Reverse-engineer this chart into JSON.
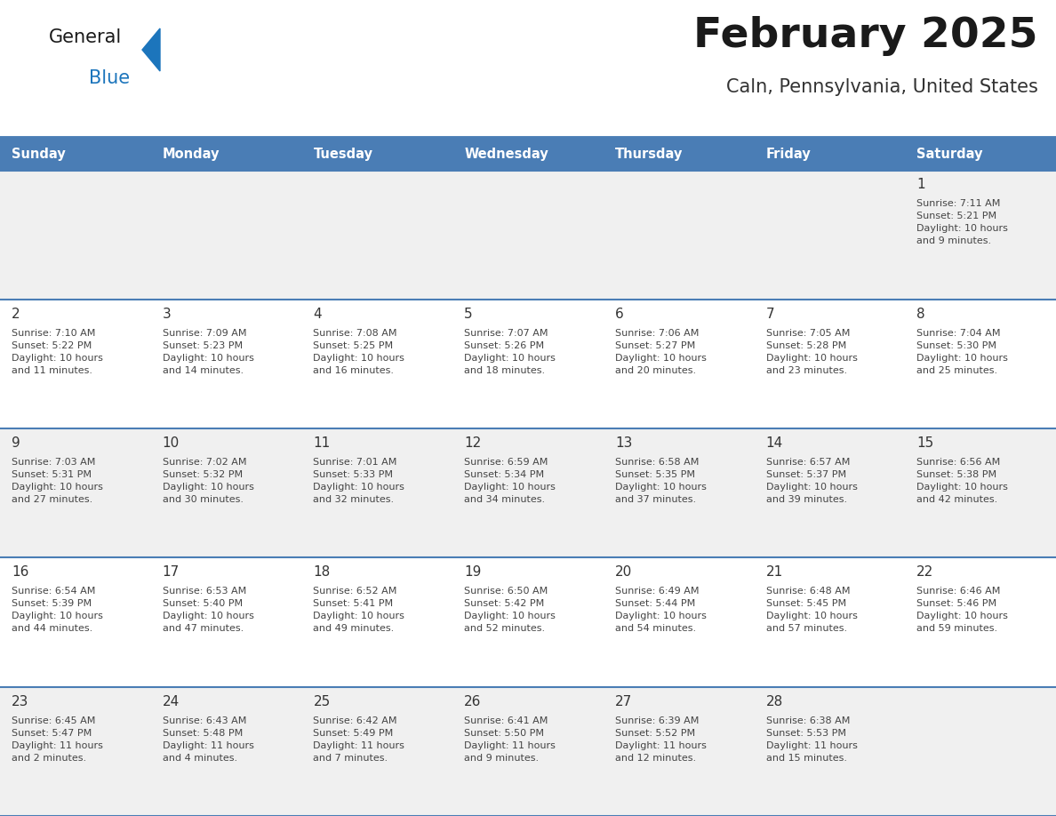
{
  "title": "February 2025",
  "subtitle": "Caln, Pennsylvania, United States",
  "header_bg": "#4A7DB5",
  "header_text_color": "#FFFFFF",
  "row_bg_light": "#F0F0F0",
  "row_bg_white": "#FFFFFF",
  "border_color": "#4A7DB5",
  "day_headers": [
    "Sunday",
    "Monday",
    "Tuesday",
    "Wednesday",
    "Thursday",
    "Friday",
    "Saturday"
  ],
  "title_color": "#1a1a1a",
  "subtitle_color": "#333333",
  "day_number_color": "#333333",
  "cell_text_color": "#444444",
  "logo_blue": "#1C75BC",
  "logo_dark": "#1a1a1a",
  "weeks": [
    [
      {
        "day": null,
        "info": null
      },
      {
        "day": null,
        "info": null
      },
      {
        "day": null,
        "info": null
      },
      {
        "day": null,
        "info": null
      },
      {
        "day": null,
        "info": null
      },
      {
        "day": null,
        "info": null
      },
      {
        "day": 1,
        "info": "Sunrise: 7:11 AM\nSunset: 5:21 PM\nDaylight: 10 hours\nand 9 minutes."
      }
    ],
    [
      {
        "day": 2,
        "info": "Sunrise: 7:10 AM\nSunset: 5:22 PM\nDaylight: 10 hours\nand 11 minutes."
      },
      {
        "day": 3,
        "info": "Sunrise: 7:09 AM\nSunset: 5:23 PM\nDaylight: 10 hours\nand 14 minutes."
      },
      {
        "day": 4,
        "info": "Sunrise: 7:08 AM\nSunset: 5:25 PM\nDaylight: 10 hours\nand 16 minutes."
      },
      {
        "day": 5,
        "info": "Sunrise: 7:07 AM\nSunset: 5:26 PM\nDaylight: 10 hours\nand 18 minutes."
      },
      {
        "day": 6,
        "info": "Sunrise: 7:06 AM\nSunset: 5:27 PM\nDaylight: 10 hours\nand 20 minutes."
      },
      {
        "day": 7,
        "info": "Sunrise: 7:05 AM\nSunset: 5:28 PM\nDaylight: 10 hours\nand 23 minutes."
      },
      {
        "day": 8,
        "info": "Sunrise: 7:04 AM\nSunset: 5:30 PM\nDaylight: 10 hours\nand 25 minutes."
      }
    ],
    [
      {
        "day": 9,
        "info": "Sunrise: 7:03 AM\nSunset: 5:31 PM\nDaylight: 10 hours\nand 27 minutes."
      },
      {
        "day": 10,
        "info": "Sunrise: 7:02 AM\nSunset: 5:32 PM\nDaylight: 10 hours\nand 30 minutes."
      },
      {
        "day": 11,
        "info": "Sunrise: 7:01 AM\nSunset: 5:33 PM\nDaylight: 10 hours\nand 32 minutes."
      },
      {
        "day": 12,
        "info": "Sunrise: 6:59 AM\nSunset: 5:34 PM\nDaylight: 10 hours\nand 34 minutes."
      },
      {
        "day": 13,
        "info": "Sunrise: 6:58 AM\nSunset: 5:35 PM\nDaylight: 10 hours\nand 37 minutes."
      },
      {
        "day": 14,
        "info": "Sunrise: 6:57 AM\nSunset: 5:37 PM\nDaylight: 10 hours\nand 39 minutes."
      },
      {
        "day": 15,
        "info": "Sunrise: 6:56 AM\nSunset: 5:38 PM\nDaylight: 10 hours\nand 42 minutes."
      }
    ],
    [
      {
        "day": 16,
        "info": "Sunrise: 6:54 AM\nSunset: 5:39 PM\nDaylight: 10 hours\nand 44 minutes."
      },
      {
        "day": 17,
        "info": "Sunrise: 6:53 AM\nSunset: 5:40 PM\nDaylight: 10 hours\nand 47 minutes."
      },
      {
        "day": 18,
        "info": "Sunrise: 6:52 AM\nSunset: 5:41 PM\nDaylight: 10 hours\nand 49 minutes."
      },
      {
        "day": 19,
        "info": "Sunrise: 6:50 AM\nSunset: 5:42 PM\nDaylight: 10 hours\nand 52 minutes."
      },
      {
        "day": 20,
        "info": "Sunrise: 6:49 AM\nSunset: 5:44 PM\nDaylight: 10 hours\nand 54 minutes."
      },
      {
        "day": 21,
        "info": "Sunrise: 6:48 AM\nSunset: 5:45 PM\nDaylight: 10 hours\nand 57 minutes."
      },
      {
        "day": 22,
        "info": "Sunrise: 6:46 AM\nSunset: 5:46 PM\nDaylight: 10 hours\nand 59 minutes."
      }
    ],
    [
      {
        "day": 23,
        "info": "Sunrise: 6:45 AM\nSunset: 5:47 PM\nDaylight: 11 hours\nand 2 minutes."
      },
      {
        "day": 24,
        "info": "Sunrise: 6:43 AM\nSunset: 5:48 PM\nDaylight: 11 hours\nand 4 minutes."
      },
      {
        "day": 25,
        "info": "Sunrise: 6:42 AM\nSunset: 5:49 PM\nDaylight: 11 hours\nand 7 minutes."
      },
      {
        "day": 26,
        "info": "Sunrise: 6:41 AM\nSunset: 5:50 PM\nDaylight: 11 hours\nand 9 minutes."
      },
      {
        "day": 27,
        "info": "Sunrise: 6:39 AM\nSunset: 5:52 PM\nDaylight: 11 hours\nand 12 minutes."
      },
      {
        "day": 28,
        "info": "Sunrise: 6:38 AM\nSunset: 5:53 PM\nDaylight: 11 hours\nand 15 minutes."
      },
      {
        "day": null,
        "info": null
      }
    ]
  ],
  "figsize": [
    11.88,
    9.18
  ],
  "dpi": 100
}
